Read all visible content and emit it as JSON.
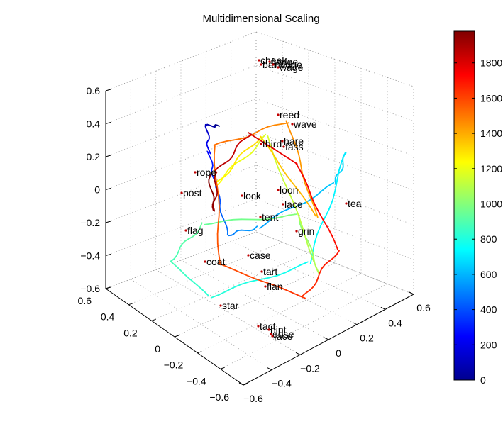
{
  "chart_data": {
    "type": "line",
    "title": "Multidimensional Scaling",
    "projection": "3d",
    "xlim": [
      -0.6,
      0.6
    ],
    "ylim": [
      -0.6,
      0.6
    ],
    "zlim": [
      -0.6,
      0.6
    ],
    "x_ticks": [
      "0.6",
      "0.4",
      "0.2",
      "0",
      "−0.2",
      "−0.4",
      "−0.6"
    ],
    "y_ticks": [
      "−0.6",
      "−0.4",
      "−0.2",
      "0",
      "0.2",
      "0.4",
      "0.6"
    ],
    "z_ticks": [
      "0.6",
      "0.4",
      "0.2",
      "0",
      "−0.2",
      "−0.4",
      "−0.6"
    ],
    "grid": true,
    "colorbar": {
      "colormap": "jet",
      "range": [
        0,
        1980
      ],
      "tick_labels": [
        "0",
        "200",
        "400",
        "600",
        "800",
        "1000",
        "1200",
        "1400",
        "1600",
        "1800"
      ]
    },
    "word_labels": [
      "reed",
      "wave",
      "hare",
      "third",
      "fass",
      "rope",
      "post",
      "lock",
      "loon",
      "lace",
      "tea",
      "tent",
      "grin",
      "flag",
      "case",
      "coat",
      "tart",
      "flan",
      "star",
      "tact",
      "hint",
      "dose",
      "face",
      "cheek",
      "fledge",
      "bait",
      "nudge",
      "wage"
    ],
    "trajectory": {
      "color_by": "time",
      "points": [
        {
          "t": 0,
          "x": 0.62,
          "y": 0.36,
          "z": 0.41
        },
        {
          "t": 120,
          "x": 0.71,
          "y": 0.36,
          "z": 0.36
        },
        {
          "t": 250,
          "x": 0.72,
          "y": 0.38,
          "z": 0.18
        },
        {
          "t": 370,
          "x": 0.62,
          "y": 0.34,
          "z": 0.05
        },
        {
          "t": 480,
          "x": 0.45,
          "y": 0.27,
          "z": -0.1
        },
        {
          "t": 560,
          "x": 0.3,
          "y": 0.33,
          "z": 0.0
        },
        {
          "t": 640,
          "x": 0.1,
          "y": 0.62,
          "z": 0.22
        },
        {
          "t": 700,
          "x": 0.08,
          "y": 0.67,
          "z": 0.39
        },
        {
          "t": 760,
          "x": 0.2,
          "y": 0.55,
          "z": -0.28
        },
        {
          "t": 820,
          "x": 0.53,
          "y": 0.23,
          "z": -0.5
        },
        {
          "t": 880,
          "x": 0.72,
          "y": 0.15,
          "z": -0.35
        },
        {
          "t": 940,
          "x": 0.69,
          "y": 0.32,
          "z": -0.2
        },
        {
          "t": 1000,
          "x": 0.42,
          "y": 0.66,
          "z": -0.18
        },
        {
          "t": 1080,
          "x": 0.3,
          "y": 0.69,
          "z": -0.48
        },
        {
          "t": 1160,
          "x": 0.52,
          "y": 0.56,
          "z": 0.3
        },
        {
          "t": 1240,
          "x": 0.69,
          "y": 0.4,
          "z": 0.0
        },
        {
          "t": 1320,
          "x": 0.56,
          "y": 0.55,
          "z": 0.28
        },
        {
          "t": 1400,
          "x": 0.3,
          "y": 0.67,
          "z": -0.12
        },
        {
          "t": 1460,
          "x": 0.42,
          "y": 0.6,
          "z": 0.42
        },
        {
          "t": 1520,
          "x": 0.7,
          "y": 0.4,
          "z": 0.22
        },
        {
          "t": 1580,
          "x": 0.54,
          "y": 0.3,
          "z": -0.35
        },
        {
          "t": 1640,
          "x": 0.28,
          "y": 0.58,
          "z": -0.55
        },
        {
          "t": 1700,
          "x": 0.18,
          "y": 0.7,
          "z": -0.27
        },
        {
          "t": 1760,
          "x": 0.25,
          "y": 0.51,
          "z": 0.32
        },
        {
          "t": 1820,
          "x": 0.46,
          "y": 0.41,
          "z": 0.43
        },
        {
          "t": 1880,
          "x": 0.64,
          "y": 0.36,
          "z": 0.12
        },
        {
          "t": 1940,
          "x": 0.58,
          "y": 0.3,
          "z": -0.05
        },
        {
          "t": 1980,
          "x": 0.67,
          "y": 0.34,
          "z": 0.1
        }
      ]
    }
  }
}
